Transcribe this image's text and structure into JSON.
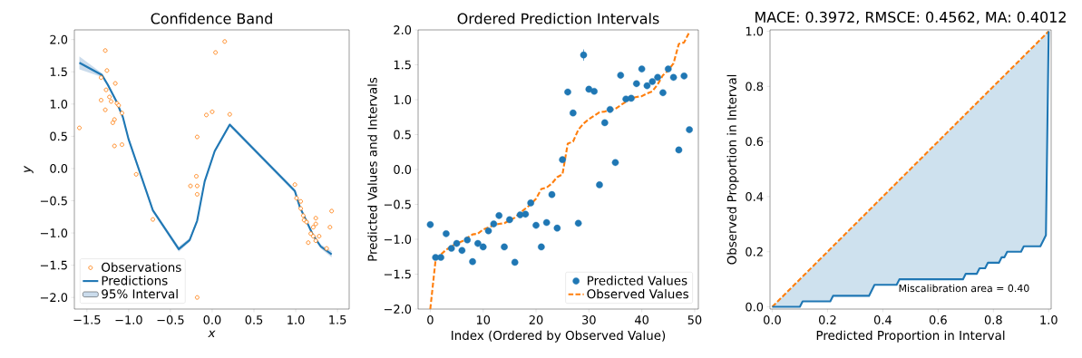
{
  "chart_data": [
    {
      "type": "scatter",
      "title": "Confidence Band",
      "xlabel": "x",
      "ylabel": "y",
      "xlim": [
        -1.65,
        1.64
      ],
      "ylim": [
        -2.18,
        2.15
      ],
      "xticks": [
        {
          "value": -1.5,
          "label": "−1.5"
        },
        {
          "value": -1.0,
          "label": "−1.0"
        },
        {
          "value": -0.5,
          "label": "−0.5"
        },
        {
          "value": 0,
          "label": "0.0"
        },
        {
          "value": 0.5,
          "label": "0.5"
        },
        {
          "value": 1.0,
          "label": "1.0"
        },
        {
          "value": 1.5,
          "label": "1.5"
        }
      ],
      "yticks": [
        {
          "value": -2.0,
          "label": "−2.0"
        },
        {
          "value": -1.5,
          "label": "−1.5"
        },
        {
          "value": -1.0,
          "label": "−1.0"
        },
        {
          "value": -0.5,
          "label": "−0.5"
        },
        {
          "value": 0,
          "label": "0.0"
        },
        {
          "value": 0.5,
          "label": "0.5"
        },
        {
          "value": 1.0,
          "label": "1.0"
        },
        {
          "value": 1.5,
          "label": "1.5"
        },
        {
          "value": 2.0,
          "label": "2.0"
        }
      ],
      "legend": "bottom left",
      "series": [
        {
          "name": "Observations",
          "color": "#ff7f0e",
          "x": [
            -1.59,
            -1.28,
            -1.26,
            -1.33,
            -1.27,
            -1.16,
            -1.33,
            -1.23,
            -1.21,
            -1.28,
            -1.14,
            -1.12,
            -1.08,
            -1.17,
            -1.19,
            -1.17,
            -1.08,
            -0.91,
            -0.71,
            -0.26,
            -0.19,
            -0.18,
            -0.18,
            -0.18,
            -0.07,
            0.0,
            0.04,
            0.15,
            0.21,
            -0.18,
            0.99,
            1.01,
            1.06,
            1.06,
            1.09,
            1.1,
            1.13,
            1.24,
            1.24,
            1.21,
            1.18,
            1.21,
            1.24,
            1.28,
            1.15,
            1.37,
            1.41,
            1.43
          ],
          "values": [
            0.63,
            1.83,
            1.52,
            1.41,
            1.22,
            1.32,
            1.06,
            1.11,
            1.04,
            0.91,
            1.01,
            0.98,
            0.86,
            0.76,
            0.71,
            0.35,
            0.37,
            -0.09,
            -0.79,
            -0.27,
            -0.12,
            -0.27,
            -0.4,
            0.49,
            0.83,
            0.88,
            1.8,
            1.97,
            0.84,
            -2.0,
            -0.25,
            -0.46,
            -0.51,
            -0.62,
            -0.73,
            -0.8,
            -0.83,
            -0.77,
            -0.86,
            -0.91,
            -1.01,
            -1.05,
            -1.12,
            -1.05,
            -1.15,
            -1.24,
            -0.91,
            -0.66
          ]
        },
        {
          "name": "Predictions",
          "type": "line",
          "color": "#1f77b4",
          "line_style": "solid",
          "x": [
            -1.59,
            -1.32,
            -1.25,
            -1.15,
            -1.07,
            -1.0,
            -0.71,
            -0.4,
            -0.27,
            -0.18,
            -0.09,
            0.03,
            0.21,
            0.99,
            1.05,
            1.21,
            1.3,
            1.43
          ],
          "values": [
            1.64,
            1.45,
            1.3,
            1.05,
            0.8,
            0.45,
            -0.65,
            -1.25,
            -1.11,
            -0.81,
            -0.2,
            0.27,
            0.68,
            -0.35,
            -0.6,
            -1.04,
            -1.21,
            -1.33
          ]
        },
        {
          "name": "95% Interval",
          "type": "area",
          "color": "#cbdcec",
          "x": [
            -1.59,
            -1.32,
            -1.25,
            -1.15,
            -1.07,
            -1.0,
            -0.71,
            -0.4,
            -0.27,
            -0.18,
            -0.09,
            0.03,
            0.21,
            0.99,
            1.05,
            1.21,
            1.3,
            1.43
          ],
          "values": [
            null,
            null,
            null,
            null,
            null,
            null,
            null,
            null,
            null,
            null,
            null,
            null,
            null,
            null,
            null,
            null,
            null,
            null
          ],
          "lower": [
            1.54,
            1.42,
            1.27,
            1.02,
            0.77,
            0.42,
            -0.68,
            -1.29,
            -1.14,
            -0.84,
            -0.23,
            0.24,
            0.65,
            -0.38,
            -0.63,
            -1.07,
            -1.24,
            -1.38
          ],
          "upper": [
            1.74,
            1.48,
            1.33,
            1.08,
            0.83,
            0.48,
            -0.62,
            -1.21,
            -1.08,
            -0.78,
            -0.17,
            0.3,
            0.71,
            -0.32,
            -0.57,
            -1.01,
            -1.18,
            -1.28
          ]
        }
      ]
    },
    {
      "type": "scatter",
      "title": "Ordered Prediction Intervals",
      "xlabel": "Index (Ordered by Observed Value)",
      "ylabel": "Predicted Values and Intervals",
      "xlim": [
        -2.3,
        50.7
      ],
      "ylim": [
        -2.0,
        2.0
      ],
      "xticks": [
        0,
        10,
        20,
        30,
        40,
        50
      ],
      "yticks": [
        {
          "value": -2.0,
          "label": "−2.0"
        },
        {
          "value": -1.5,
          "label": "−1.5"
        },
        {
          "value": -1.0,
          "label": "−1.0"
        },
        {
          "value": -0.5,
          "label": "−0.5"
        },
        {
          "value": 0,
          "label": "0.0"
        },
        {
          "value": 0.5,
          "label": "0.5"
        },
        {
          "value": 1.0,
          "label": "1.0"
        },
        {
          "value": 1.5,
          "label": "1.5"
        },
        {
          "value": 2.0,
          "label": "2.0"
        }
      ],
      "legend": "bottom right",
      "x": [
        0,
        1,
        2,
        3,
        4,
        5,
        6,
        7,
        8,
        9,
        10,
        11,
        12,
        13,
        14,
        15,
        16,
        17,
        18,
        19,
        20,
        21,
        22,
        23,
        24,
        25,
        26,
        27,
        28,
        29,
        30,
        31,
        32,
        33,
        34,
        35,
        36,
        37,
        38,
        39,
        40,
        41,
        42,
        43,
        44,
        45,
        46,
        47,
        48,
        49
      ],
      "series": [
        {
          "name": "Predicted Values",
          "color": "#1f77b4",
          "values": [
            -0.79,
            -1.26,
            -1.26,
            -0.92,
            -1.13,
            -1.06,
            -1.16,
            -1.01,
            -1.32,
            -1.06,
            -1.11,
            -0.88,
            -0.78,
            -0.66,
            -1.11,
            -0.72,
            -1.33,
            -0.65,
            -0.64,
            -0.48,
            -0.8,
            -1.11,
            -0.76,
            -0.36,
            -0.84,
            0.14,
            1.11,
            0.81,
            -0.77,
            1.64,
            1.15,
            1.12,
            -0.22,
            0.67,
            0.86,
            0.1,
            1.35,
            1.01,
            1.02,
            1.23,
            1.44,
            1.2,
            1.26,
            1.32,
            1.1,
            1.44,
            1.32,
            0.28,
            1.34,
            0.57
          ],
          "errors": [
            null,
            null,
            null,
            null,
            null,
            null,
            null,
            null,
            null,
            null,
            null,
            null,
            null,
            null,
            null,
            null,
            null,
            null,
            null,
            null,
            null,
            null,
            null,
            null,
            null,
            null,
            null,
            null,
            null,
            0.08,
            null,
            null,
            null,
            null,
            null,
            null,
            null,
            null,
            null,
            null,
            null,
            null,
            null,
            null,
            null,
            null,
            null,
            null,
            null,
            null
          ]
        },
        {
          "name": "Observed Values",
          "type": "line",
          "color": "#ff7f0e",
          "line_style": "dashed",
          "values": [
            -2.0,
            -1.3,
            -1.22,
            -1.15,
            -1.1,
            -1.06,
            -1.03,
            -0.98,
            -0.93,
            -0.92,
            -0.86,
            -0.83,
            -0.8,
            -0.78,
            -0.77,
            -0.73,
            -0.69,
            -0.62,
            -0.56,
            -0.5,
            -0.42,
            -0.28,
            -0.26,
            -0.2,
            -0.11,
            -0.07,
            0.37,
            0.4,
            0.57,
            0.66,
            0.72,
            0.77,
            0.82,
            0.83,
            0.85,
            0.87,
            0.92,
            0.97,
            1.02,
            1.04,
            1.05,
            1.09,
            1.12,
            1.22,
            1.35,
            1.42,
            1.52,
            1.8,
            1.82,
            1.97
          ]
        }
      ]
    },
    {
      "type": "line",
      "title": "MACE: 0.3972, RMSCE: 0.4562, MA: 0.4012",
      "xlabel": "Predicted Proportion in Interval",
      "ylabel": "Observed Proportion in Interval",
      "xlim": [
        -0.008,
        1.009
      ],
      "ylim": [
        -0.008,
        1.005
      ],
      "xticks": [
        {
          "value": 0,
          "label": "0.0"
        },
        {
          "value": 0.2,
          "label": "0.2"
        },
        {
          "value": 0.4,
          "label": "0.4"
        },
        {
          "value": 0.6,
          "label": "0.6"
        },
        {
          "value": 0.8,
          "label": "0.8"
        },
        {
          "value": 1.0,
          "label": "1.0"
        }
      ],
      "yticks": [
        {
          "value": 0,
          "label": "0.0"
        },
        {
          "value": 0.2,
          "label": "0.2"
        },
        {
          "value": 0.4,
          "label": "0.4"
        },
        {
          "value": 0.6,
          "label": "0.6"
        },
        {
          "value": 0.8,
          "label": "0.8"
        },
        {
          "value": 1.0,
          "label": "1.0"
        }
      ],
      "annotations": [
        "Miscalibration area = 0.40"
      ],
      "series": [
        {
          "color": "#ff7f0e",
          "line_style": "dashed",
          "x": [
            0,
            1.0
          ],
          "values": [
            0,
            1.0
          ]
        },
        {
          "color": "#1f77b4",
          "line_style": "solid",
          "x": [
            0,
            0.1,
            0.11,
            0.21,
            0.22,
            0.35,
            0.37,
            0.45,
            0.46,
            0.69,
            0.7,
            0.74,
            0.75,
            0.77,
            0.78,
            0.82,
            0.83,
            0.84,
            0.85,
            0.9,
            0.91,
            0.97,
            0.99,
            1.0
          ],
          "lower": [
            0,
            0,
            0.02,
            0.02,
            0.04,
            0.04,
            0.08,
            0.08,
            0.1,
            0.1,
            0.12,
            0.12,
            0.14,
            0.14,
            0.16,
            0.16,
            0.18,
            0.18,
            0.2,
            0.2,
            0.22,
            0.22,
            0.26,
            1.0
          ],
          "upper": [
            0,
            0.1,
            0.11,
            0.21,
            0.22,
            0.35,
            0.37,
            0.45,
            0.46,
            0.69,
            0.7,
            0.74,
            0.75,
            0.77,
            0.78,
            0.82,
            0.83,
            0.84,
            0.85,
            0.9,
            0.91,
            0.97,
            0.99,
            1.0
          ],
          "values": [
            0,
            0,
            0.02,
            0.02,
            0.04,
            0.04,
            0.08,
            0.08,
            0.1,
            0.1,
            0.12,
            0.12,
            0.14,
            0.14,
            0.16,
            0.16,
            0.18,
            0.18,
            0.2,
            0.2,
            0.22,
            0.22,
            0.26,
            1.0
          ]
        }
      ]
    }
  ]
}
